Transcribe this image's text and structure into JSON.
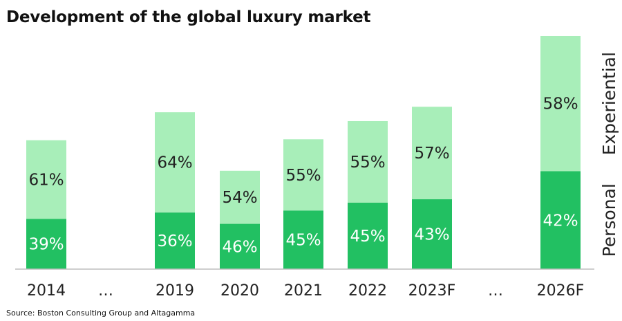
{
  "chart_data": {
    "type": "bar",
    "stacked": true,
    "normalized_percent": true,
    "title": "Development of the global luxury market",
    "categories": [
      "2014",
      "…",
      "2019",
      "2020",
      "2021",
      "2022",
      "2023F",
      "…",
      "2026F"
    ],
    "series": [
      {
        "name": "Personal",
        "color": "#22c062",
        "labels": [
          "39%",
          "",
          "36%",
          "46%",
          "45%",
          "45%",
          "43%",
          "",
          "42%"
        ]
      },
      {
        "name": "Experiential",
        "color": "#a8eeb9",
        "labels": [
          "61%",
          "",
          "64%",
          "54%",
          "55%",
          "55%",
          "57%",
          "",
          "58%"
        ]
      }
    ],
    "relative_total": [
      262,
      null,
      319,
      200,
      264,
      301,
      330,
      null,
      474
    ],
    "personal_value": [
      102,
      null,
      115,
      92,
      119,
      135,
      142,
      null,
      199
    ],
    "gridlines": false,
    "legend": "right, vertical labels beside the last bar"
  },
  "title": "Development of the global luxury market",
  "source": "Source: Boston Consulting Group and Altagamma"
}
